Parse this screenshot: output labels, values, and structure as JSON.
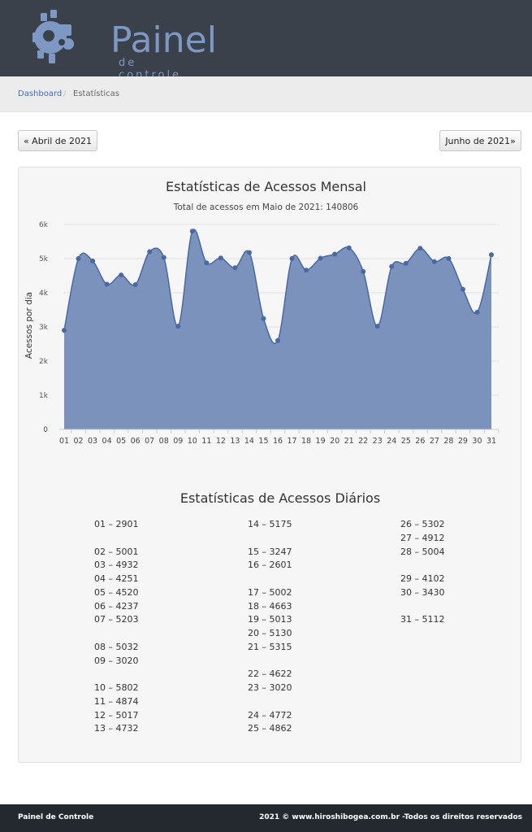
{
  "header": {
    "logo_title": "Painel",
    "logo_subtitle": "de controle"
  },
  "breadcrumb": {
    "home": "Dashboard",
    "separator": "/",
    "current": "Estatísticas"
  },
  "nav": {
    "prev_label": "« Abril de 2021",
    "next_label": "Junho de 2021»"
  },
  "colors": {
    "header_bg": "#3a414b",
    "logo": "#7e98c4",
    "area_fill": "#7b93bc",
    "line": "#4a68a3",
    "link": "#3b6fc5",
    "footer_bg": "#24292f"
  },
  "chart_data": {
    "type": "area",
    "title": "Estatísticas de Acessos Mensal",
    "subtitle": "Total de acessos em Maio de 2021: 140806",
    "ylabel": "Acessos por dia",
    "xlabel": "",
    "ylim": [
      0,
      6000
    ],
    "yticks": [
      "0",
      "1k",
      "2k",
      "3k",
      "4k",
      "5k",
      "6k"
    ],
    "grid": true,
    "smooth": true,
    "categories": [
      "01",
      "02",
      "03",
      "04",
      "05",
      "06",
      "07",
      "08",
      "09",
      "10",
      "11",
      "12",
      "13",
      "14",
      "15",
      "16",
      "17",
      "18",
      "19",
      "20",
      "21",
      "22",
      "23",
      "24",
      "25",
      "26",
      "27",
      "28",
      "29",
      "30",
      "31"
    ],
    "values": [
      2901,
      5001,
      4932,
      4251,
      4520,
      4237,
      5203,
      5032,
      3020,
      5802,
      4874,
      5017,
      4732,
      5175,
      3247,
      2601,
      5002,
      4663,
      5013,
      5130,
      5315,
      4622,
      3020,
      4772,
      4862,
      5302,
      4912,
      5004,
      4102,
      3430,
      5112
    ]
  },
  "daily": {
    "title": "Estatísticas de Acessos Diários",
    "columns": [
      [
        "01 – 2901",
        "",
        "02 – 5001",
        "03 – 4932",
        "04 – 4251",
        "05 – 4520",
        "06 – 4237",
        "07 – 5203",
        "",
        "08 – 5032",
        "09 – 3020",
        "",
        "10 – 5802",
        "11 – 4874",
        "12 – 5017",
        "13 – 4732"
      ],
      [
        "14 – 5175",
        "",
        "15 – 3247",
        "16 – 2601",
        "",
        "17 – 5002",
        "18 – 4663",
        "19 – 5013",
        "20 – 5130",
        "21 – 5315",
        "",
        "22 – 4622",
        "23 – 3020",
        "",
        "24 – 4772",
        "25 – 4862"
      ],
      [
        "26 – 5302",
        "27 – 4912",
        "28 – 5004",
        "",
        "29 – 4102",
        "30 – 3430",
        "",
        "31 – 5112"
      ]
    ]
  },
  "footer": {
    "left": "Painel de Controle",
    "right": "2021 © www.hiroshibogea.com.br -Todos os direitos reservados"
  }
}
